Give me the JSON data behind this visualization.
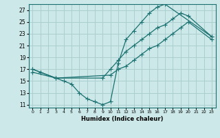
{
  "xlabel": "Humidex (Indice chaleur)",
  "bg_color": "#cce8e8",
  "grid_color": "#aacece",
  "line_color": "#1a7070",
  "xlim": [
    -0.5,
    23.5
  ],
  "ylim": [
    10.5,
    28.0
  ],
  "xticks": [
    0,
    1,
    2,
    3,
    4,
    5,
    6,
    7,
    8,
    9,
    10,
    11,
    12,
    13,
    14,
    15,
    16,
    17,
    18,
    19,
    20,
    21,
    22,
    23
  ],
  "yticks": [
    11,
    13,
    15,
    17,
    19,
    21,
    23,
    25,
    27
  ],
  "line1_x": [
    0,
    1,
    3,
    9,
    10,
    11,
    12,
    13,
    14,
    15,
    16,
    17,
    18,
    19,
    20,
    23
  ],
  "line1_y": [
    17,
    16.5,
    15.5,
    15.5,
    17,
    18.5,
    20,
    21,
    22,
    23,
    24,
    24.5,
    25.5,
    26.5,
    26,
    22.5
  ],
  "line2_x": [
    0,
    1,
    3,
    4,
    5,
    6,
    7,
    8,
    9,
    10,
    11,
    12,
    13,
    14,
    15,
    16,
    17,
    23
  ],
  "line2_y": [
    17,
    16.5,
    15.5,
    15,
    14.5,
    13,
    12,
    11.5,
    11,
    11.5,
    18,
    22,
    23.5,
    25,
    26.5,
    27.5,
    28,
    22.5
  ],
  "line3_x": [
    0,
    3,
    10,
    11,
    12,
    13,
    14,
    15,
    16,
    17,
    18,
    19,
    20,
    23
  ],
  "line3_y": [
    16.5,
    15.5,
    16,
    17,
    17.5,
    18.5,
    19.5,
    20.5,
    21,
    22,
    23,
    24,
    25,
    22
  ]
}
